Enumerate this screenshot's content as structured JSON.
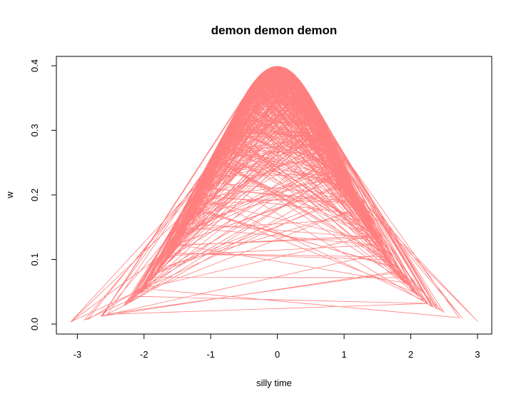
{
  "chart_data": {
    "type": "line",
    "title": "demon demon demon",
    "xlabel": "silly time",
    "ylabel": "w",
    "xlim": [
      -3.1,
      3.0
    ],
    "ylim": [
      0.0,
      0.399
    ],
    "x_ticks": [
      -3,
      -2,
      -1,
      0,
      1,
      2,
      3
    ],
    "y_ticks": [
      0.0,
      0.1,
      0.2,
      0.3,
      0.4
    ],
    "x_tick_labels": [
      "-3",
      "-2",
      "-1",
      "0",
      "1",
      "2",
      "3"
    ],
    "y_tick_labels": [
      "0.0",
      "0.1",
      "0.2",
      "0.3",
      "0.4"
    ],
    "grid": false,
    "legend": "none",
    "line_color": "#FF7F7F",
    "series": [
      {
        "name": "w",
        "description": "dnorm(x) traced in random order of x",
        "n": 1000,
        "function": "standard normal density",
        "x_distribution": "standard normal sample"
      }
    ]
  }
}
